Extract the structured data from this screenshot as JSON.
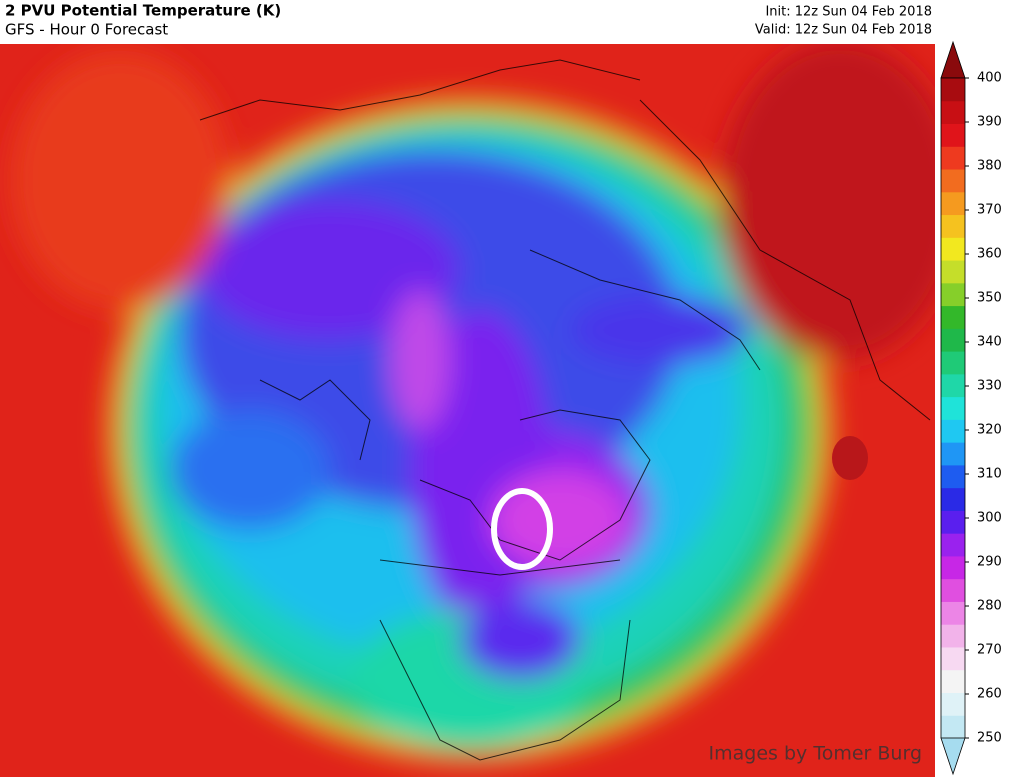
{
  "header": {
    "title": "2 PVU Potential Temperature (K)",
    "subtitle": "GFS - Hour 0 Forecast",
    "init": "Init: 12z Sun 04 Feb 2018",
    "valid": "Valid: 12z Sun 04 Feb 2018"
  },
  "colorbar": {
    "range": [
      250,
      400
    ],
    "ticks": [
      250,
      260,
      270,
      280,
      290,
      300,
      310,
      320,
      330,
      340,
      350,
      360,
      370,
      380,
      390,
      400
    ],
    "colors": [
      "#a6dcef",
      "#c3e8f3",
      "#dff2f7",
      "#f4f4f4",
      "#f7d9f2",
      "#f2b3ea",
      "#ec85e6",
      "#e04fe0",
      "#c727e6",
      "#9a22ee",
      "#5a1fee",
      "#2a2ae6",
      "#1e5cf0",
      "#1f96f5",
      "#1fc8f2",
      "#1fe3d9",
      "#1fd7a8",
      "#1fca77",
      "#1fb84a",
      "#33b82a",
      "#86cf2a",
      "#c5de2a",
      "#f2e81f",
      "#f5c21f",
      "#f59a1f",
      "#f26c1f",
      "#ee3a1f",
      "#e0141a",
      "#c80f14",
      "#a80c10",
      "#8a0a0c"
    ]
  },
  "credit": "Images by Tomer Burg"
}
